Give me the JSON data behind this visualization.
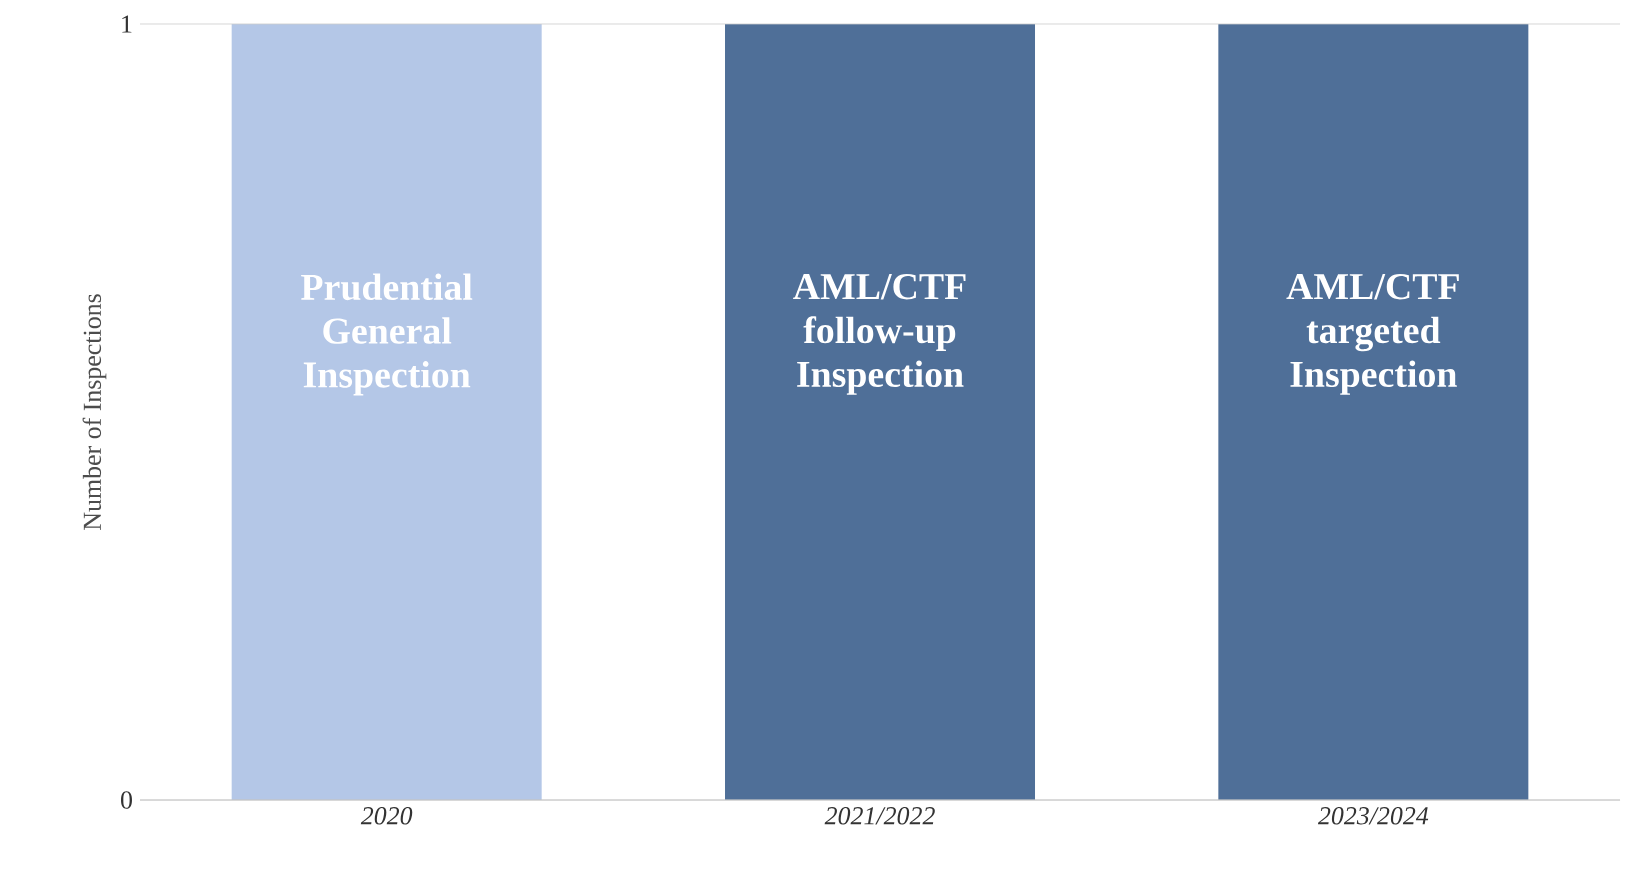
{
  "chart_data": {
    "type": "bar",
    "ylabel": "Number of Inspections",
    "categories": [
      "2020",
      "2021/2022",
      "2023/2024"
    ],
    "values": [
      1,
      1,
      1
    ],
    "colors": [
      "#b4c7e7",
      "#4f6f98",
      "#4f6f98"
    ],
    "ylim": [
      0,
      1
    ],
    "yticks": [
      0,
      1
    ],
    "grid": "y",
    "annotations": [
      "Prudential General Inspection",
      "AML/CTF follow-up Inspection",
      "AML/CTF targeted Inspection"
    ]
  }
}
